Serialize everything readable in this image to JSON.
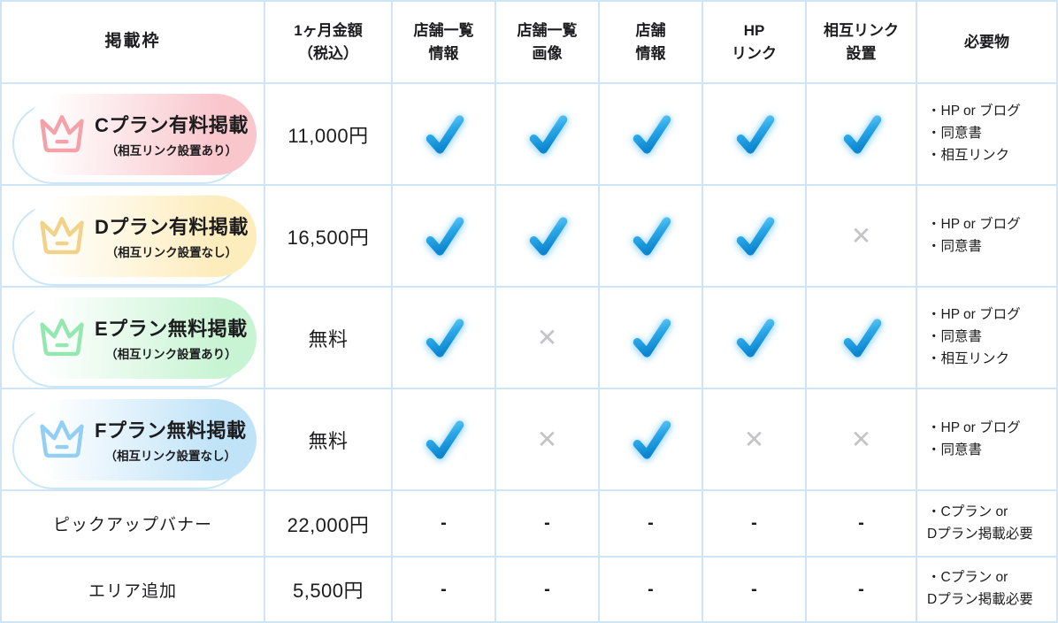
{
  "table": {
    "header": {
      "cells": [
        "掲載枠",
        "1ヶ月金額\n（税込）",
        "店舗一覧\n情報",
        "店舗一覧\n画像",
        "店舗\n情報",
        "HP\nリンク",
        "相互リンク\n設置",
        "必要物"
      ]
    },
    "rows": [
      {
        "plan": {
          "title": "Cプラン有料掲載",
          "subtitle": "（相互リンク設置あり）"
        },
        "price": "11,000円",
        "features": [
          "check",
          "check",
          "check",
          "check",
          "check"
        ],
        "requirements": [
          "・HP or ブログ",
          "・同意書",
          "・相互リンク"
        ]
      },
      {
        "plan": {
          "title": "Dプラン有料掲載",
          "subtitle": "（相互リンク設置なし）"
        },
        "price": "16,500円",
        "features": [
          "check",
          "check",
          "check",
          "check",
          "cross"
        ],
        "requirements": [
          "・HP or ブログ",
          "・同意書"
        ]
      },
      {
        "plan": {
          "title": "Eプラン無料掲載",
          "subtitle": "（相互リンク設置あり）"
        },
        "price": "無料",
        "features": [
          "check",
          "cross",
          "check",
          "check",
          "check"
        ],
        "requirements": [
          "・HP or ブログ",
          "・同意書",
          "・相互リンク"
        ]
      },
      {
        "plan": {
          "title": "Fプラン無料掲載",
          "subtitle": "（相互リンク設置なし）"
        },
        "price": "無料",
        "features": [
          "check",
          "cross",
          "check",
          "cross",
          "cross"
        ],
        "requirements": [
          "・HP or ブログ",
          "・同意書"
        ]
      },
      {
        "label": "ピックアップバナー",
        "price": "22,000円",
        "features": [
          "dash",
          "dash",
          "dash",
          "dash",
          "dash"
        ],
        "requirements": [
          "・Cプラン or\nDプラン掲載必要"
        ]
      },
      {
        "label": "エリア追加",
        "price": "5,500円",
        "features": [
          "dash",
          "dash",
          "dash",
          "dash",
          "dash"
        ],
        "requirements": [
          "・Cプラン or\nDプラン掲載必要"
        ]
      }
    ]
  },
  "marks": {
    "cross_glyph": "✕",
    "dash_glyph": "-"
  },
  "colors": {
    "grid_border": "#cfe4f5",
    "check_blue": "#1d9ce2",
    "check_glow": "#bfe3f8",
    "cross_gray": "#c3c3c8",
    "pill_outline": "#c9e7f8",
    "plan_c_pink": "#f9c6cc",
    "plan_d_yellow": "#fdecbc",
    "plan_e_green": "#c9f4d4",
    "plan_f_blue": "#c0e3f8",
    "crown_c": "#f4a1aa",
    "crown_d": "#f2d289",
    "crown_e": "#93e7af",
    "crown_f": "#92cff2"
  },
  "chart_data": {
    "type": "table",
    "title": "掲載枠プラン比較表",
    "columns": [
      "掲載枠",
      "1ヶ月金額（税込）",
      "店舗一覧情報",
      "店舗一覧画像",
      "店舗情報",
      "HPリンク",
      "相互リンク設置",
      "必要物"
    ],
    "rows": [
      [
        "Cプラン有料掲載（相互リンク設置あり）",
        "11,000円",
        "✓",
        "✓",
        "✓",
        "✓",
        "✓",
        "HP or ブログ・同意書・相互リンク"
      ],
      [
        "Dプラン有料掲載（相互リンク設置なし）",
        "16,500円",
        "✓",
        "✓",
        "✓",
        "✓",
        "✕",
        "HP or ブログ・同意書"
      ],
      [
        "Eプラン無料掲載（相互リンク設置あり）",
        "無料",
        "✓",
        "✕",
        "✓",
        "✓",
        "✓",
        "HP or ブログ・同意書・相互リンク"
      ],
      [
        "Fプラン無料掲載（相互リンク設置なし）",
        "無料",
        "✓",
        "✕",
        "✓",
        "✕",
        "✕",
        "HP or ブログ・同意書"
      ],
      [
        "ピックアップバナー",
        "22,000円",
        "-",
        "-",
        "-",
        "-",
        "-",
        "Cプラン or Dプラン掲載必要"
      ],
      [
        "エリア追加",
        "5,500円",
        "-",
        "-",
        "-",
        "-",
        "-",
        "Cプラン or Dプラン掲載必要"
      ]
    ]
  }
}
